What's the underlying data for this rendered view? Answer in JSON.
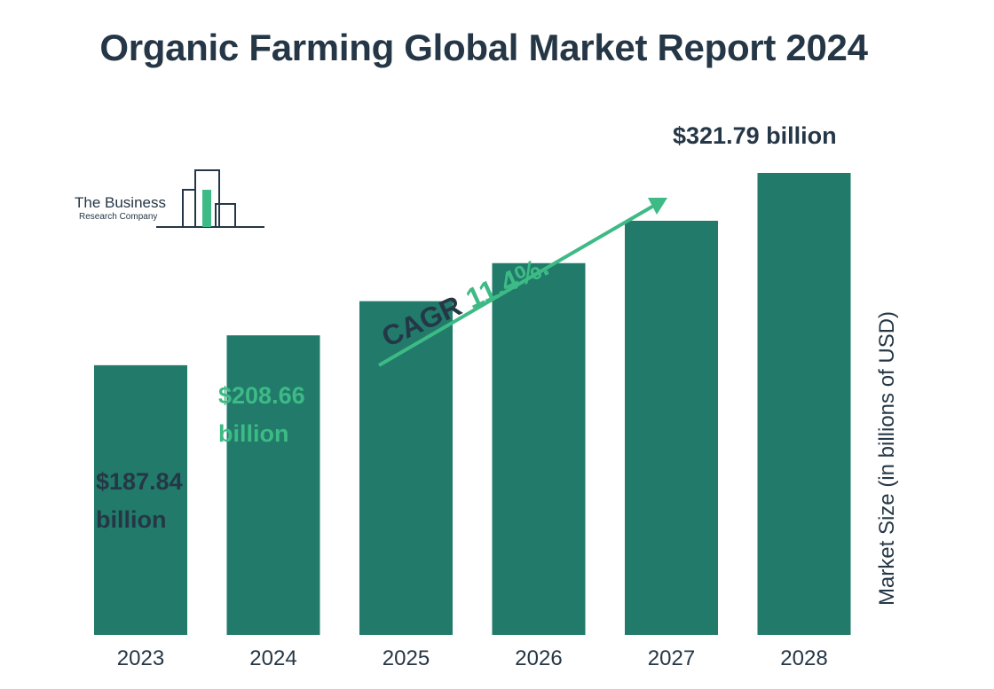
{
  "title": "Organic Farming Global Market Report 2024",
  "logo": {
    "name": "The Business",
    "sub": "Research Company"
  },
  "cagr": {
    "label": "CAGR",
    "value": "11.4%."
  },
  "colors": {
    "bar": "#217a6a",
    "accent": "#3dba85",
    "text": "#253746"
  },
  "chart_data": {
    "type": "bar",
    "title": "Organic Farming Global Market Report 2024",
    "xlabel": "",
    "ylabel": "Market Size (in billions of USD)",
    "categories": [
      "2023",
      "2024",
      "2025",
      "2026",
      "2027",
      "2028"
    ],
    "values": [
      187.84,
      208.66,
      232.45,
      258.95,
      288.47,
      321.79
    ],
    "ylim": [
      0,
      321.79
    ],
    "grid": false,
    "legend": "none",
    "data_labels": [
      {
        "category": "2023",
        "line1": "$187.84",
        "line2": "billion",
        "style": "dark"
      },
      {
        "category": "2024",
        "line1": "$208.66",
        "line2": "billion",
        "style": "accent"
      },
      {
        "category": "2028",
        "line1": "$321.79 billion",
        "line2": "",
        "style": "dark"
      }
    ]
  }
}
